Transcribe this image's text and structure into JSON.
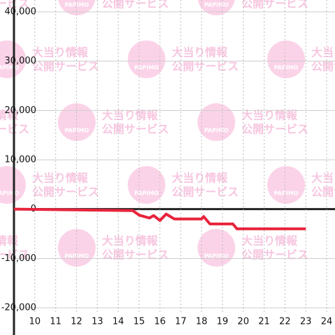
{
  "chart_data": {
    "type": "line",
    "x": [
      9,
      14.7,
      15,
      15.5,
      15.7,
      16,
      16.3,
      16.7,
      18,
      18.1,
      18.4,
      19.5,
      19.7,
      23
    ],
    "series": [
      {
        "color": "#e8243c",
        "values": [
          0,
          -300,
          -1200,
          -1800,
          -1300,
          -2300,
          -1000,
          -2000,
          -2000,
          -1500,
          -3000,
          -3000,
          -4000,
          -4000
        ]
      }
    ],
    "xlim": [
      9,
      24.4
    ],
    "xticks": [
      10,
      11,
      12,
      13,
      14,
      15,
      16,
      17,
      18,
      19,
      20,
      21,
      22,
      23,
      24
    ],
    "ylim": [
      -20000,
      40000
    ],
    "yticks": [
      {
        "value": -20000,
        "label": "-20,000"
      },
      {
        "value": -10000,
        "label": "-10,000"
      },
      0,
      {
        "value": 10000,
        "label": "10,000"
      },
      {
        "value": 20000,
        "label": "20,000"
      },
      {
        "value": 30000,
        "label": "30,000"
      },
      {
        "value": 40000,
        "label": "40,000"
      }
    ],
    "grid": true
  },
  "watermark": {
    "logo": "PAPIMO",
    "line1": "大当り情報",
    "line2": "公開サービス"
  }
}
